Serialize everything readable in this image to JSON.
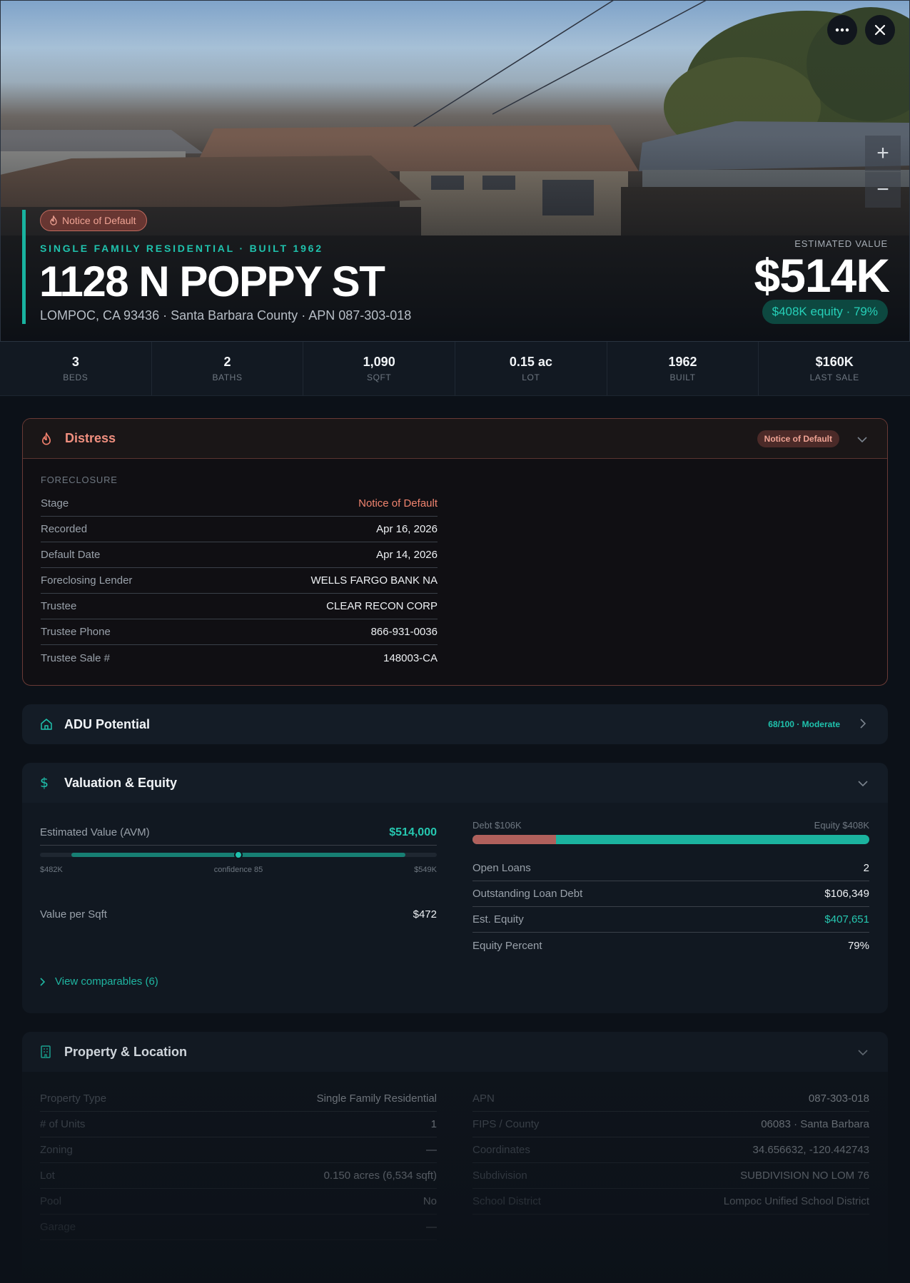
{
  "hero": {
    "badge": "Notice of Default",
    "subtitle": "SINGLE FAMILY RESIDENTIAL · BUILT 1962",
    "address": "1128 N POPPY ST",
    "location": "LOMPOC, CA 93436 · Santa Barbara County · APN 087-303-018",
    "estimated_label": "ESTIMATED VALUE",
    "estimated_value": "$514K",
    "equity_pill": "$408K equity · 79%",
    "more_icon": "ellipsis-icon",
    "close_icon": "close-icon",
    "zoom_in": "+",
    "zoom_out": "−"
  },
  "stats": [
    {
      "value": "3",
      "label": "BEDS"
    },
    {
      "value": "2",
      "label": "BATHS"
    },
    {
      "value": "1,090",
      "label": "SQFT"
    },
    {
      "value": "0.15 ac",
      "label": "LOT"
    },
    {
      "value": "1962",
      "label": "BUILT"
    },
    {
      "value": "$160K",
      "label": "LAST SALE"
    }
  ],
  "distress": {
    "title": "Distress",
    "badge": "Notice of Default",
    "section": "FORECLOSURE",
    "rows": [
      {
        "k": "Stage",
        "v": "Notice of Default"
      },
      {
        "k": "Recorded",
        "v": "Apr 16, 2026"
      },
      {
        "k": "Default Date",
        "v": "Apr 14, 2026"
      },
      {
        "k": "Foreclosing Lender",
        "v": "WELLS FARGO BANK NA"
      },
      {
        "k": "Trustee",
        "v": "CLEAR RECON CORP"
      },
      {
        "k": "Trustee Phone",
        "v": "866-931-0036"
      },
      {
        "k": "Trustee Sale #",
        "v": "148003-CA"
      }
    ]
  },
  "adu": {
    "title": "ADU Potential",
    "score": "68/100 · Moderate"
  },
  "valuation": {
    "title": "Valuation & Equity",
    "avm_label": "Estimated Value (AVM)",
    "avm_value": "$514,000",
    "range_low": "$482K",
    "range_high": "$549K",
    "confidence": "confidence 85",
    "range_fill_start": 0.08,
    "range_fill_end": 0.92,
    "range_marker": 0.5,
    "vps_label": "Value per Sqft",
    "vps_value": "$472",
    "debt_label": "Debt $106K",
    "equity_label": "Equity $408K",
    "debt_fraction": 0.21,
    "rows": [
      {
        "k": "Open Loans",
        "v": "2"
      },
      {
        "k": "Outstanding Loan Debt",
        "v": "$106,349"
      },
      {
        "k": "Est. Equity",
        "v": "$407,651"
      },
      {
        "k": "Equity Percent",
        "v": "79%"
      }
    ],
    "comps": "View comparables (6)"
  },
  "property": {
    "title": "Property & Location",
    "left": [
      {
        "k": "Property Type",
        "v": "Single Family Residential"
      },
      {
        "k": "# of Units",
        "v": "1"
      },
      {
        "k": "Zoning",
        "v": "—"
      },
      {
        "k": "Lot",
        "v": "0.150 acres (6,534 sqft)"
      },
      {
        "k": "Pool",
        "v": "No"
      },
      {
        "k": "Garage",
        "v": "—"
      }
    ],
    "right": [
      {
        "k": "APN",
        "v": "087-303-018"
      },
      {
        "k": "FIPS / County",
        "v": "06083 · Santa Barbara"
      },
      {
        "k": "Coordinates",
        "v": "34.656632, -120.442743"
      },
      {
        "k": "Subdivision",
        "v": "SUBDIVISION NO LOM 76"
      },
      {
        "k": "School District",
        "v": "Lompoc Unified School District"
      }
    ]
  },
  "colors": {
    "accent": "#1fc2ad",
    "distress": "#f0846f",
    "background": "#0c1118"
  }
}
